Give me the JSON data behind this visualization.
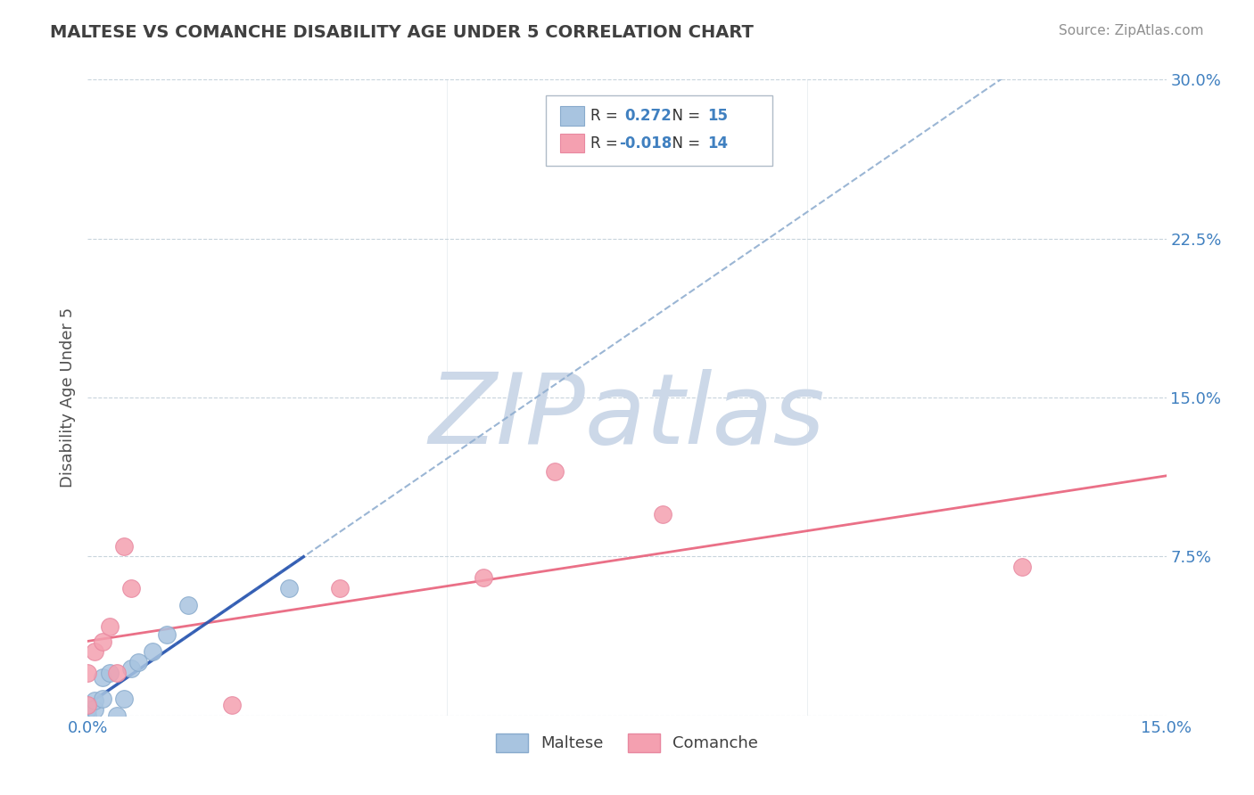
{
  "title": "MALTESE VS COMANCHE DISABILITY AGE UNDER 5 CORRELATION CHART",
  "source": "Source: ZipAtlas.com",
  "ylabel": "Disability Age Under 5",
  "xlim": [
    0.0,
    0.15
  ],
  "ylim": [
    0.0,
    0.3
  ],
  "xticks": [
    0.0,
    0.05,
    0.1,
    0.15
  ],
  "xtick_labels": [
    "0.0%",
    "",
    "",
    "15.0%"
  ],
  "yticks": [
    0.0,
    0.075,
    0.15,
    0.225,
    0.3
  ],
  "ytick_labels": [
    "",
    "7.5%",
    "15.0%",
    "22.5%",
    "30.0%"
  ],
  "maltese_R": 0.272,
  "maltese_N": 15,
  "comanche_R": -0.018,
  "comanche_N": 14,
  "maltese_color": "#a8c4e0",
  "comanche_color": "#f4a0b0",
  "maltese_line_color": "#2855b0",
  "maltese_dash_color": "#90aed0",
  "comanche_line_color": "#e8607a",
  "watermark": "ZIPatlas",
  "watermark_color": "#ccd8e8",
  "background_color": "#ffffff",
  "grid_color": "#c8d4dc",
  "tick_color": "#4080c0",
  "legend_text_color": "#333333",
  "legend_num_color": "#4080c0",
  "maltese_x": [
    0.0,
    0.0,
    0.001,
    0.001,
    0.002,
    0.002,
    0.003,
    0.004,
    0.005,
    0.006,
    0.007,
    0.009,
    0.011,
    0.014,
    0.028
  ],
  "maltese_y": [
    0.0,
    0.003,
    0.003,
    0.007,
    0.008,
    0.018,
    0.02,
    0.0,
    0.008,
    0.022,
    0.025,
    0.03,
    0.038,
    0.052,
    0.06
  ],
  "comanche_x": [
    0.0,
    0.0,
    0.001,
    0.002,
    0.003,
    0.004,
    0.005,
    0.006,
    0.02,
    0.035,
    0.055,
    0.065,
    0.08,
    0.13
  ],
  "comanche_y": [
    0.005,
    0.02,
    0.03,
    0.035,
    0.042,
    0.02,
    0.08,
    0.06,
    0.005,
    0.06,
    0.065,
    0.115,
    0.095,
    0.07
  ]
}
